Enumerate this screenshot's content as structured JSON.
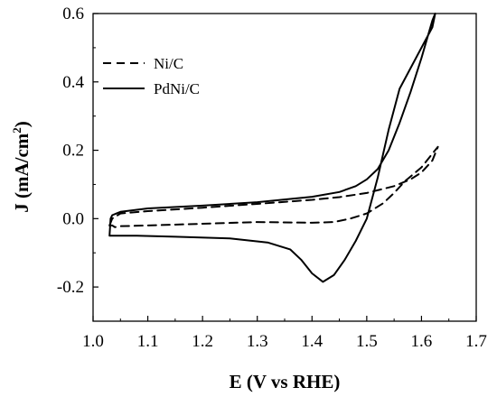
{
  "chart_data": {
    "type": "line",
    "title": "",
    "xlabel": "E (V vs RHE)",
    "ylabel_main": "J (mA/cm",
    "ylabel_sup": "2",
    "ylabel_close": ")",
    "xlim": [
      1.0,
      1.7
    ],
    "ylim": [
      -0.3,
      0.6
    ],
    "x_ticks": [
      "1.0",
      "1.1",
      "1.2",
      "1.3",
      "1.4",
      "1.5",
      "1.6",
      "1.7"
    ],
    "y_ticks": [
      "-0.2",
      "0.0",
      "0.2",
      "0.4",
      "0.6"
    ],
    "grid": false,
    "legend_position": "top-left",
    "series": [
      {
        "name": "Ni/C",
        "style": "dashed",
        "color": "#000000",
        "x": [
          1.03,
          1.035,
          1.05,
          1.1,
          1.2,
          1.3,
          1.4,
          1.45,
          1.5,
          1.55,
          1.58,
          1.6,
          1.62,
          1.63,
          1.62,
          1.6,
          1.57,
          1.55,
          1.53,
          1.5,
          1.47,
          1.44,
          1.4,
          1.3,
          1.2,
          1.1,
          1.05,
          1.04,
          1.035,
          1.03
        ],
        "y": [
          -0.02,
          0.0,
          0.015,
          0.022,
          0.032,
          0.043,
          0.055,
          0.063,
          0.075,
          0.095,
          0.115,
          0.135,
          0.17,
          0.21,
          0.19,
          0.15,
          0.11,
          0.075,
          0.045,
          0.015,
          0.0,
          -0.01,
          -0.012,
          -0.01,
          -0.015,
          -0.02,
          -0.022,
          -0.025,
          -0.02,
          -0.02
        ]
      },
      {
        "name": "PdNi/C",
        "style": "solid",
        "color": "#000000",
        "x": [
          1.03,
          1.032,
          1.035,
          1.05,
          1.1,
          1.2,
          1.3,
          1.4,
          1.45,
          1.48,
          1.5,
          1.52,
          1.54,
          1.56,
          1.58,
          1.6,
          1.62,
          1.625,
          1.62,
          1.6,
          1.58,
          1.56,
          1.54,
          1.52,
          1.5,
          1.48,
          1.46,
          1.44,
          1.42,
          1.4,
          1.38,
          1.36,
          1.32,
          1.25,
          1.15,
          1.08,
          1.05,
          1.03
        ],
        "y": [
          -0.05,
          0.0,
          0.01,
          0.02,
          0.03,
          0.038,
          0.048,
          0.064,
          0.078,
          0.095,
          0.115,
          0.145,
          0.2,
          0.28,
          0.37,
          0.47,
          0.58,
          0.6,
          0.56,
          0.5,
          0.44,
          0.38,
          0.26,
          0.12,
          0.0,
          -0.065,
          -0.12,
          -0.165,
          -0.185,
          -0.16,
          -0.12,
          -0.09,
          -0.07,
          -0.058,
          -0.053,
          -0.05,
          -0.05,
          -0.05
        ]
      }
    ]
  }
}
